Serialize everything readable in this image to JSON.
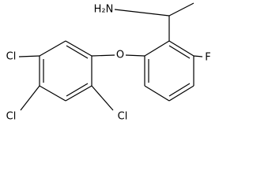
{
  "atoms": [
    {
      "label": "H₂N"
    },
    {
      "label": "F"
    },
    {
      "label": "O"
    },
    {
      "label": "Cl"
    },
    {
      "label": "Cl"
    },
    {
      "label": "Cl"
    }
  ]
}
